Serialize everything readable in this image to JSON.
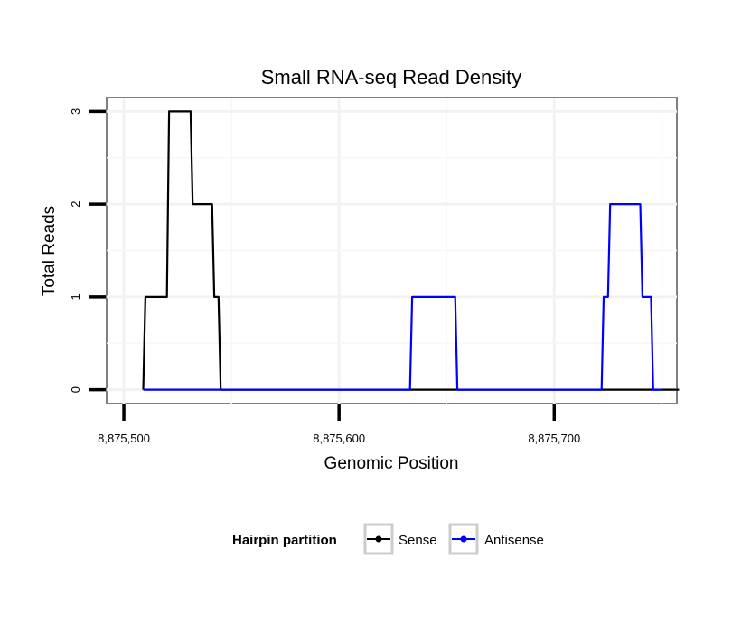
{
  "chart_data": {
    "type": "line",
    "title": "Small RNA-seq Read Density",
    "xlabel": "Genomic Position",
    "ylabel": "Total Reads",
    "xlim": [
      8875492,
      8875757
    ],
    "ylim": [
      -0.15,
      3.15
    ],
    "x_ticks": [
      8875500,
      8875600,
      8875700
    ],
    "x_tick_labels": [
      "8,875,500",
      "8,875,600",
      "8,875,700"
    ],
    "y_ticks": [
      0,
      1,
      2,
      3
    ],
    "y_tick_labels": [
      "0",
      "1",
      "2",
      "3"
    ],
    "grid": true,
    "legend": {
      "title": "Hairpin partition",
      "position": "bottom"
    },
    "series": [
      {
        "name": "Sense",
        "color": "#000000",
        "x": [
          8875509,
          8875510,
          8875520,
          8875521,
          8875531,
          8875532,
          8875541,
          8875542,
          8875544,
          8875545,
          8875758
        ],
        "y": [
          0,
          1,
          1,
          3,
          3,
          2,
          2,
          1,
          1,
          0,
          0
        ]
      },
      {
        "name": "Antisense",
        "color": "#0000ff",
        "x": [
          8875509,
          8875633,
          8875634,
          8875654,
          8875655,
          8875722,
          8875723,
          8875725,
          8875726,
          8875740,
          8875741,
          8875745,
          8875746,
          8875750
        ],
        "y": [
          0,
          0,
          1,
          1,
          0,
          0,
          1,
          1,
          2,
          2,
          1,
          1,
          0,
          0
        ]
      }
    ]
  }
}
